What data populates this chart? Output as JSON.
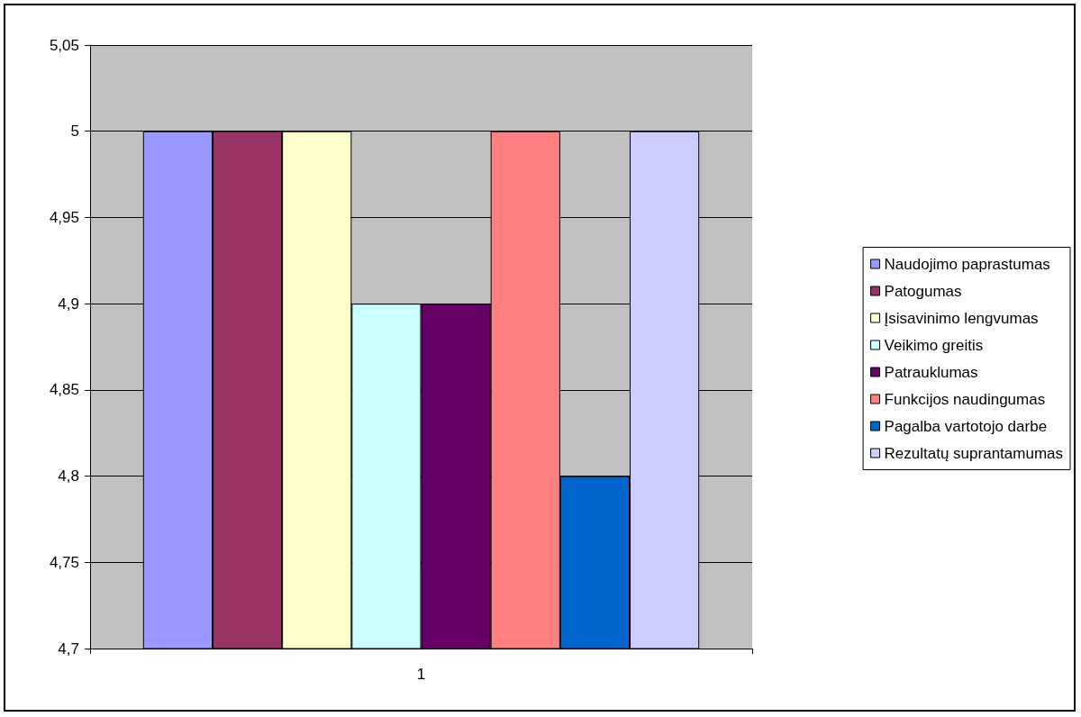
{
  "chart_data": {
    "type": "bar",
    "categories": [
      "1"
    ],
    "series": [
      {
        "name": "Naudojimo paprastumas",
        "color": "#9999ff",
        "values": [
          5
        ]
      },
      {
        "name": "Patogumas",
        "color": "#993366",
        "values": [
          5
        ]
      },
      {
        "name": "Įsisavinimo lengvumas",
        "color": "#ffffcc",
        "values": [
          5
        ]
      },
      {
        "name": "Veikimo greitis",
        "color": "#ccffff",
        "values": [
          4.9
        ]
      },
      {
        "name": "Patrauklumas",
        "color": "#660066",
        "values": [
          4.9
        ]
      },
      {
        "name": "Funkcijos naudingumas",
        "color": "#ff8080",
        "values": [
          5
        ]
      },
      {
        "name": "Pagalba vartotojo darbe",
        "color": "#0066cc",
        "values": [
          4.8
        ]
      },
      {
        "name": "Rezultatų suprantamumas",
        "color": "#ccccff",
        "values": [
          5
        ]
      }
    ],
    "ylim": [
      4.7,
      5.05
    ],
    "yticks": [
      {
        "value": 4.7,
        "label": "4,7"
      },
      {
        "value": 4.75,
        "label": "4,75"
      },
      {
        "value": 4.8,
        "label": "4,8"
      },
      {
        "value": 4.85,
        "label": "4,85"
      },
      {
        "value": 4.9,
        "label": "4,9"
      },
      {
        "value": 4.95,
        "label": "4,95"
      },
      5,
      {
        "value": 5.05,
        "label": "5,05"
      }
    ],
    "grid": "y",
    "legend": "right"
  }
}
